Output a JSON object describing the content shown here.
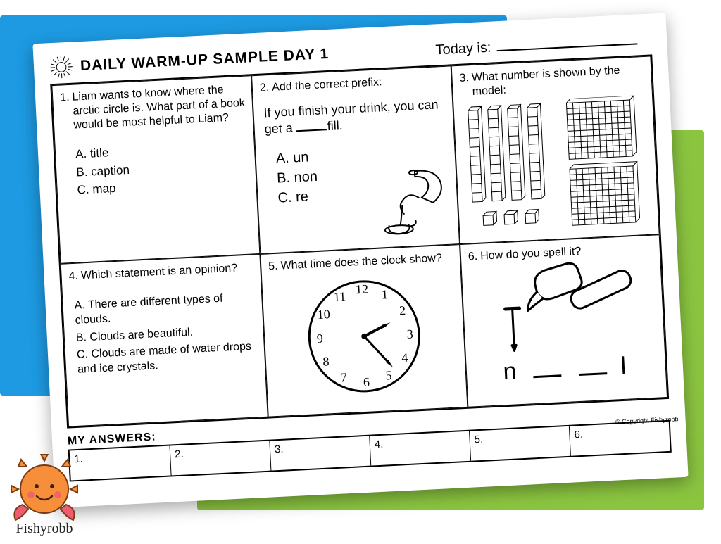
{
  "header": {
    "title": "DAILY WARM-UP SAMPLE DAY 1",
    "today_label": "Today is:"
  },
  "questions": {
    "q1": {
      "num": "1.",
      "text": "Liam wants to know where the arctic circle is. What part of a book would be most helpful to Liam?",
      "a": "A.  title",
      "b": "B.  caption",
      "c": "C.  map"
    },
    "q2": {
      "num": "2.",
      "text": "Add the correct prefix:",
      "sentence_a": "If you finish your drink, you can get a ",
      "sentence_b": "fill.",
      "a": "A.  un",
      "b": "B.  non",
      "c": "C.  re"
    },
    "q3": {
      "num": "3.",
      "text": "What number is shown by the model:"
    },
    "q4": {
      "num": "4.",
      "text": "Which statement is an opinion?",
      "a": "A. There are different types of clouds.",
      "b": "B. Clouds are beautiful.",
      "c": "C. Clouds are made of water drops and ice crystals."
    },
    "q5": {
      "num": "5.",
      "text": "What time does the clock show?",
      "clock": {
        "hour_angle": 65,
        "minute_angle": 140
      }
    },
    "q6": {
      "num": "6.",
      "text": "How do you spell it?",
      "first": "n",
      "last": "l"
    }
  },
  "answers": {
    "label": "MY ANSWERS:",
    "nums": [
      "1.",
      "2.",
      "3.",
      "4.",
      "5.",
      "6."
    ]
  },
  "copyright": "© Copyright Fishyrobb",
  "logo_script": "Fishyrobb",
  "colors": {
    "blue": "#1d9ae2",
    "green": "#8bc540",
    "sun_body": "#f78f3a",
    "sun_cheek": "#ef5b6f"
  }
}
